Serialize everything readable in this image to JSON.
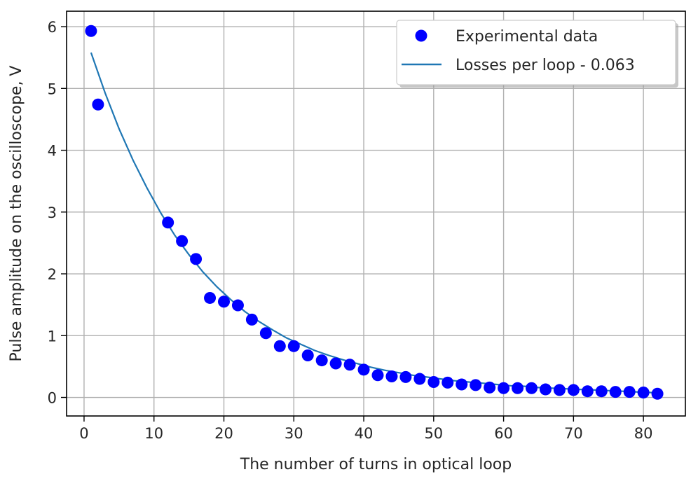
{
  "chart_data": {
    "type": "scatter",
    "title": "",
    "xlabel": "The number of turns in optical loop",
    "ylabel": "Pulse amplitude on the oscilloscope, V",
    "xlim": [
      -2.5,
      86
    ],
    "ylim": [
      -0.3,
      6.25
    ],
    "xticks": [
      0,
      10,
      20,
      30,
      40,
      50,
      60,
      70,
      80
    ],
    "yticks": [
      0,
      1,
      2,
      3,
      4,
      5,
      6
    ],
    "grid": true,
    "legend_position": "top-right",
    "colors": {
      "points": "#0000ff",
      "line": "#1f77b4",
      "grid": "#b0b0b0",
      "axes": "#000000"
    },
    "series": [
      {
        "name": "Experimental data",
        "kind": "scatter",
        "x": [
          1,
          2,
          12,
          14,
          16,
          18,
          20,
          22,
          24,
          26,
          28,
          30,
          32,
          34,
          36,
          38,
          40,
          42,
          44,
          46,
          48,
          50,
          52,
          54,
          56,
          58,
          60,
          62,
          64,
          66,
          68,
          70,
          72,
          74,
          76,
          78,
          80,
          82
        ],
        "y": [
          5.93,
          4.74,
          2.83,
          2.53,
          2.24,
          1.61,
          1.55,
          1.49,
          1.26,
          1.04,
          0.83,
          0.83,
          0.68,
          0.6,
          0.55,
          0.53,
          0.45,
          0.36,
          0.34,
          0.33,
          0.3,
          0.25,
          0.24,
          0.21,
          0.2,
          0.16,
          0.15,
          0.15,
          0.15,
          0.13,
          0.12,
          0.12,
          0.1,
          0.1,
          0.09,
          0.09,
          0.08,
          0.06
        ]
      },
      {
        "name": "Losses per loop - 0.063",
        "kind": "line",
        "x": [
          1,
          3,
          5,
          7,
          9,
          11,
          13,
          15,
          17,
          19,
          21,
          23,
          25,
          27,
          29,
          31,
          33,
          35,
          37,
          39,
          41,
          43,
          45,
          47,
          49,
          51,
          53,
          55,
          57,
          59,
          61,
          63,
          65,
          67,
          69,
          71,
          73,
          75,
          77,
          79,
          81,
          82
        ],
        "y": [
          5.58,
          4.93,
          4.35,
          3.84,
          3.39,
          2.98,
          2.62,
          2.31,
          2.03,
          1.79,
          1.58,
          1.39,
          1.23,
          1.09,
          0.96,
          0.86,
          0.76,
          0.68,
          0.61,
          0.55,
          0.49,
          0.44,
          0.4,
          0.36,
          0.33,
          0.3,
          0.27,
          0.25,
          0.23,
          0.21,
          0.19,
          0.18,
          0.16,
          0.15,
          0.14,
          0.13,
          0.12,
          0.11,
          0.1,
          0.09,
          0.08,
          0.07
        ]
      }
    ]
  }
}
